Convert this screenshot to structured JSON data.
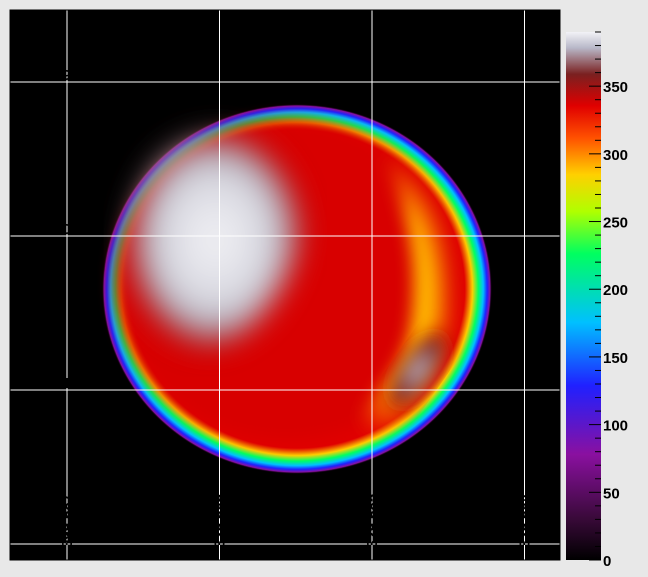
{
  "chart_data": {
    "type": "heatmap",
    "title": "",
    "xlabel": "",
    "ylabel": "",
    "x_ticks": [
      "329.687",
      "329.686",
      "329.685",
      "329.684"
    ],
    "y_ticks": [
      "-10.499",
      "-10.500",
      "-10.501",
      "-10.502"
    ],
    "z_ticks": [
      "0",
      "50",
      "100",
      "150",
      "200",
      "250",
      "300",
      "350"
    ],
    "zlim": [
      0,
      390
    ],
    "colormap": [
      "#000000",
      "#3a0a3a",
      "#8a10a0",
      "#2020ff",
      "#00c0ff",
      "#00ff60",
      "#b0ff00",
      "#ffd000",
      "#ff5000",
      "#e00000",
      "#7a2020",
      "#b8b8c8",
      "#f2f2f6"
    ],
    "grid": true,
    "background": "#000000",
    "color_scale": "right",
    "features": [
      {
        "name": "disk-rim",
        "value": 200
      },
      {
        "name": "bright-region",
        "value": 385
      },
      {
        "name": "red-core",
        "value": 330
      },
      {
        "name": "yellow-arc",
        "value": 290
      },
      {
        "name": "inner-bright-spot",
        "value": 370
      }
    ]
  }
}
